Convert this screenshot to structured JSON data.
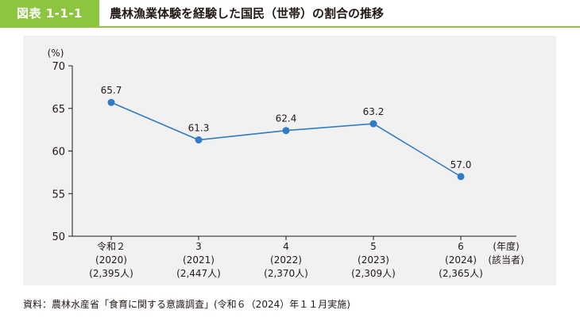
{
  "header": {
    "figure_label": "図表 1-1-1",
    "title": "農林漁業体験を経験した国民（世帯）の割合の推移"
  },
  "footer": {
    "source": "資料：農林水産省「食育に関する意識調査」(令和６（2024）年１１月実施)"
  },
  "chart_data": {
    "type": "line",
    "title": "",
    "ylabel": "(%)",
    "xlabel": [
      "(年度)",
      "(該当者)"
    ],
    "ylim": [
      50,
      70
    ],
    "yticks": [
      50,
      55,
      60,
      65,
      70
    ],
    "grid": false,
    "categories": [
      [
        "令和２",
        "(2020)",
        "(2,395人)"
      ],
      [
        "3",
        "(2021)",
        "(2,447人)"
      ],
      [
        "4",
        "(2022)",
        "(2,370人)"
      ],
      [
        "5",
        "(2023)",
        "(2,309人)"
      ],
      [
        "6",
        "(2024)",
        "(2,365人)"
      ]
    ],
    "series": [
      {
        "values": [
          65.7,
          61.3,
          62.4,
          63.2,
          57.0
        ],
        "labels": [
          "65.7",
          "61.3",
          "62.4",
          "63.2",
          "57.0"
        ]
      }
    ],
    "colors": {
      "line": "#2f7cc4",
      "marker": "#2f7cc4",
      "axis": "#231815"
    }
  }
}
